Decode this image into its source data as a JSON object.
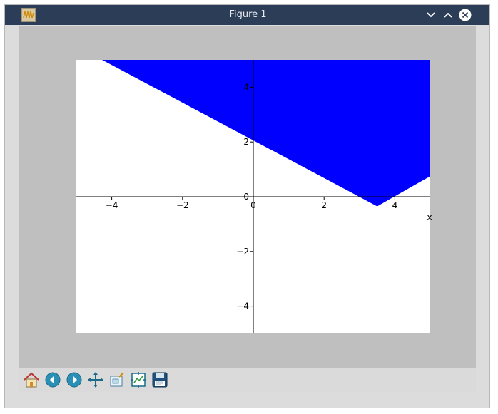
{
  "window": {
    "title": "Figure 1",
    "app_icon": "matplotlib-wave-icon"
  },
  "titlebar_buttons": [
    {
      "name": "minimize-button",
      "icon": "chevron-down-icon"
    },
    {
      "name": "maximize-button",
      "icon": "chevron-up-icon"
    },
    {
      "name": "close-button",
      "icon": "close-icon"
    }
  ],
  "toolbar": {
    "buttons": [
      {
        "name": "home-button",
        "icon": "home-icon"
      },
      {
        "name": "back-button",
        "icon": "arrow-left-icon"
      },
      {
        "name": "forward-button",
        "icon": "arrow-right-icon"
      },
      {
        "name": "pan-button",
        "icon": "move-arrows-icon"
      },
      {
        "name": "zoom-button",
        "icon": "zoom-rect-icon"
      },
      {
        "name": "subplots-button",
        "icon": "configure-subplots-icon"
      },
      {
        "name": "save-button",
        "icon": "floppy-disk-icon"
      }
    ]
  },
  "colors": {
    "fill": "#0000ff",
    "axes_bg": "#ffffff",
    "figure_bg": "#bfbfbf",
    "titlebar": "#2c3e57"
  },
  "chart_data": {
    "type": "area",
    "xlim": [
      -5,
      5
    ],
    "ylim": [
      -5,
      5
    ],
    "xlabel": "x",
    "ylabel": "",
    "x_ticks": [
      -4,
      -2,
      0,
      2,
      4
    ],
    "x_tick_labels": [
      "−4",
      "−2",
      "0",
      "2",
      "4"
    ],
    "y_ticks": [
      -4,
      -2,
      0,
      2,
      4
    ],
    "y_tick_labels": [
      "−4",
      "−2",
      "0",
      "2",
      "4"
    ],
    "spines": "centered at origin",
    "grid": false,
    "legend": "none",
    "series": [
      {
        "kind": "filled-region-above-curve",
        "boundary": [
          {
            "x": -5,
            "y": 5.5
          },
          {
            "x": 3.5,
            "y": -0.35
          },
          {
            "x": 5,
            "y": 0.75
          }
        ],
        "upper": 5
      }
    ]
  }
}
